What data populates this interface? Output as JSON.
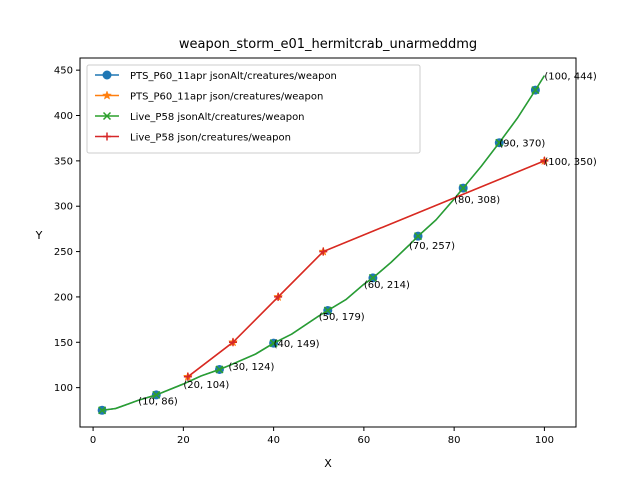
{
  "chart_data": {
    "type": "line",
    "title": "weapon_storm_e01_hermitcrab_unarmeddmg",
    "xlabel": "X",
    "ylabel": "Y",
    "xlim": [
      -2.9,
      107
    ],
    "ylim": [
      56.6,
      463.4
    ],
    "xticks": [
      0,
      20,
      40,
      60,
      80,
      100
    ],
    "yticks": [
      100,
      150,
      200,
      250,
      300,
      350,
      400,
      450
    ],
    "grid": false,
    "legend_position": "top-left",
    "series": [
      {
        "name": "PTS_P60_11apr jsonAlt/creatures/weapon",
        "color": "#1f77b4",
        "marker": "circle",
        "x": [
          2,
          5,
          10,
          14,
          20,
          24,
          28,
          30,
          36,
          40,
          44,
          50,
          52,
          56,
          60,
          62,
          66,
          70,
          72,
          76,
          80,
          82,
          86,
          90,
          94,
          98,
          100
        ],
        "y": [
          75,
          77,
          86,
          92,
          104,
          113,
          120,
          124,
          137,
          149,
          159,
          179,
          185,
          197,
          214,
          221,
          238,
          257,
          267,
          285,
          308,
          320,
          344,
          370,
          397,
          428,
          444
        ],
        "marker_x": [
          2,
          14,
          28,
          40,
          52,
          62,
          72,
          82,
          90,
          98
        ]
      },
      {
        "name": "PTS_P60_11apr json/creatures/weapon",
        "color": "#ff7f0e",
        "marker": "star",
        "x": [
          21,
          31,
          41,
          51,
          100
        ],
        "y": [
          112,
          150,
          200,
          250,
          350
        ],
        "marker_x": [
          21,
          31,
          41,
          51,
          100
        ]
      },
      {
        "name": "Live_P58 jsonAlt/creatures/weapon",
        "color": "#2ca02c",
        "marker": "x",
        "x": [
          2,
          5,
          10,
          14,
          20,
          24,
          28,
          30,
          36,
          40,
          44,
          50,
          52,
          56,
          60,
          62,
          66,
          70,
          72,
          76,
          80,
          82,
          86,
          90,
          94,
          98,
          100
        ],
        "y": [
          75,
          77,
          86,
          92,
          104,
          113,
          120,
          124,
          137,
          149,
          159,
          179,
          185,
          197,
          214,
          221,
          238,
          257,
          267,
          285,
          308,
          320,
          344,
          370,
          397,
          428,
          444
        ],
        "marker_x": [
          2,
          14,
          28,
          40,
          52,
          62,
          72,
          82,
          90,
          98
        ]
      },
      {
        "name": "Live_P58 json/creatures/weapon",
        "color": "#d62728",
        "marker": "plus",
        "x": [
          21,
          31,
          41,
          51,
          100
        ],
        "y": [
          112,
          150,
          200,
          250,
          350
        ],
        "marker_x": [
          21,
          31,
          41,
          51,
          100
        ]
      }
    ],
    "annotations": [
      {
        "text": "(10, 86)",
        "x": 10,
        "y": 86
      },
      {
        "text": "(20, 104)",
        "x": 20,
        "y": 104
      },
      {
        "text": "(30, 124)",
        "x": 30,
        "y": 124
      },
      {
        "text": "(40, 149)",
        "x": 40,
        "y": 149
      },
      {
        "text": "(50, 179)",
        "x": 50,
        "y": 179
      },
      {
        "text": "(60, 214)",
        "x": 60,
        "y": 214
      },
      {
        "text": "(70, 257)",
        "x": 70,
        "y": 257
      },
      {
        "text": "(80, 308)",
        "x": 80,
        "y": 308
      },
      {
        "text": "(90, 370)",
        "x": 90,
        "y": 370
      },
      {
        "text": "(100, 444)",
        "x": 100,
        "y": 444
      },
      {
        "text": "(100, 350)",
        "x": 100,
        "y": 350
      }
    ]
  }
}
